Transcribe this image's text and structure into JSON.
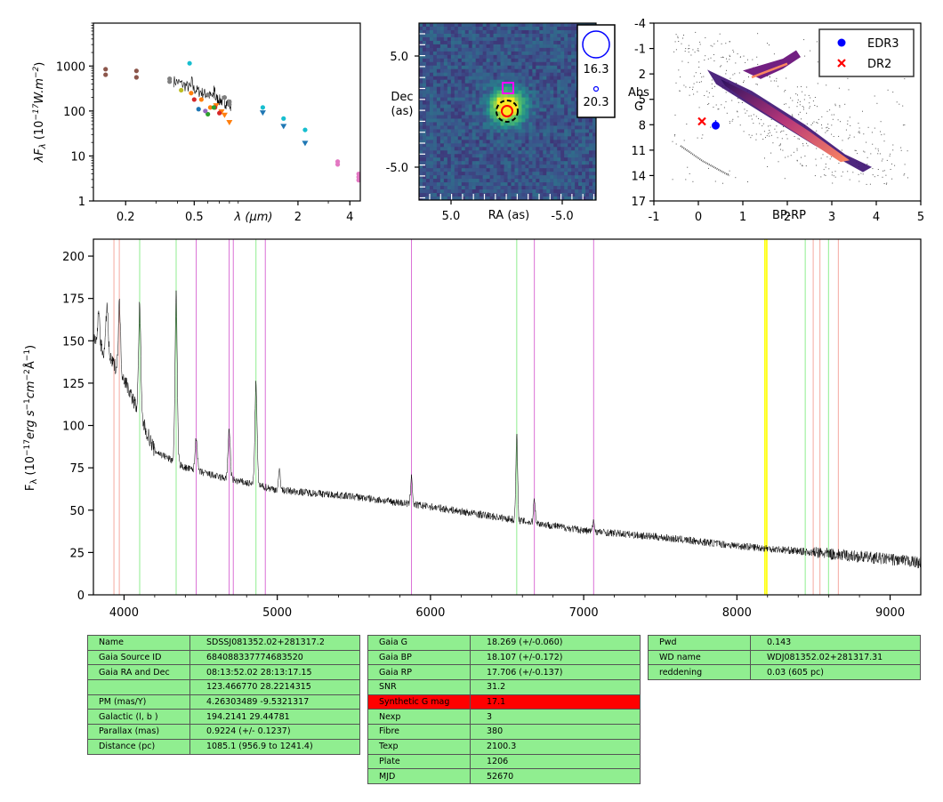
{
  "chart_data": [
    {
      "type": "scatter",
      "panel": "sed",
      "xlabel": "λ (μm)",
      "ylabel": "λF_λ (10^-17 W.m^-2)",
      "xscale": "log",
      "yscale": "log",
      "xlim": [
        0.13,
        4.6
      ],
      "ylim": [
        1,
        9000
      ],
      "xticks": [
        "0.2",
        "0.5",
        "2",
        "4"
      ],
      "yticks": [
        "1",
        "10",
        "100",
        "1000"
      ],
      "series": [
        {
          "color": "#8c564b",
          "x": [
            0.153,
            0.153,
            0.231,
            0.231
          ],
          "y": [
            850,
            640,
            780,
            560
          ]
        },
        {
          "color": "#17becf",
          "x": [
            0.47,
            1.25,
            1.65,
            2.2
          ],
          "y": [
            1150,
            120,
            68,
            38
          ]
        },
        {
          "color": "#ff7f0e",
          "x": [
            0.48,
            0.55,
            0.62,
            0.67,
            0.72,
            0.75,
            0.8
          ],
          "y": [
            250,
            180,
            120,
            130,
            95,
            80,
            55
          ]
        },
        {
          "color": "#1f77b4",
          "x": [
            1.25,
            1.65,
            2.2,
            0.53
          ],
          "y": [
            90,
            45,
            19,
            110
          ]
        },
        {
          "color": "#d62728",
          "x": [
            0.5,
            0.66,
            0.7
          ],
          "y": [
            180,
            120,
            90
          ]
        },
        {
          "color": "#2ca02c",
          "x": [
            0.6,
            0.65
          ],
          "y": [
            85,
            120
          ]
        },
        {
          "color": "#e377c2",
          "x": [
            3.4,
            3.4,
            4.5,
            4.5,
            4.5
          ],
          "y": [
            7.5,
            6.5,
            4.0,
            3.4,
            2.9
          ]
        },
        {
          "color": "#7f7f7f",
          "x": [
            0.36,
            0.36,
            0.6,
            0.75,
            0.8,
            0.8
          ],
          "y": [
            520,
            450,
            230,
            200,
            160,
            140
          ]
        },
        {
          "color": "#bcbd22",
          "x": [
            0.42
          ],
          "y": [
            290
          ]
        },
        {
          "color": "#9467bd",
          "x": [
            0.58
          ],
          "y": [
            100
          ]
        }
      ]
    },
    {
      "type": "heatmap",
      "panel": "image",
      "xlabel": "RA (as)",
      "ylabel": "Dec (as)",
      "xlim": [
        8.0,
        -8.0
      ],
      "ylim": [
        -8.0,
        8.0
      ],
      "xticks": [
        "5.0",
        "-5.0"
      ],
      "yticks": [
        "5.0",
        "-5.0"
      ],
      "legend": [
        {
          "label": "16.3",
          "marker": "large-circle",
          "color": "#0000ff"
        },
        {
          "label": "20.3",
          "marker": "small-circle",
          "color": "#0000ff"
        }
      ]
    },
    {
      "type": "scatter",
      "panel": "hr-diagram",
      "xlabel": "BP-RP",
      "ylabel": "Abs G",
      "xlim": [
        -1,
        5
      ],
      "ylim": [
        17,
        -4
      ],
      "xticks": [
        "-1",
        "0",
        "1",
        "2",
        "3",
        "4",
        "5"
      ],
      "yticks": [
        "-4",
        "-1",
        "2",
        "5",
        "8",
        "11",
        "14",
        "17"
      ],
      "legend_position": "top-right",
      "series": [
        {
          "name": "EDR3",
          "color": "#0000ff",
          "marker": "circle",
          "x": [
            0.39
          ],
          "y": [
            8.1
          ]
        },
        {
          "name": "DR2",
          "color": "#ff0000",
          "marker": "x",
          "x": [
            0.08
          ],
          "y": [
            7.6
          ]
        }
      ]
    },
    {
      "type": "line",
      "panel": "spectrum",
      "xlabel": "",
      "ylabel": "F_λ (10^-17 erg s^-1 cm^-2 Å^-1)",
      "xlim": [
        3800,
        9200
      ],
      "ylim": [
        0,
        210
      ],
      "xticks": [
        "4000",
        "5000",
        "6000",
        "7000",
        "8000",
        "9000"
      ],
      "yticks": [
        "0",
        "25",
        "50",
        "75",
        "100",
        "125",
        "150",
        "175",
        "200"
      ],
      "continuum": [
        [
          3800,
          150
        ],
        [
          3900,
          140
        ],
        [
          4000,
          128
        ],
        [
          4200,
          85
        ],
        [
          4400,
          75
        ],
        [
          4600,
          70
        ],
        [
          5000,
          62
        ],
        [
          5500,
          58
        ],
        [
          6000,
          52
        ],
        [
          6500,
          45
        ],
        [
          7000,
          38
        ],
        [
          7500,
          34
        ],
        [
          8000,
          29
        ],
        [
          8500,
          25
        ],
        [
          9000,
          21
        ],
        [
          9200,
          19
        ]
      ],
      "emission_lines": [
        {
          "x": 3835,
          "height": 20
        },
        {
          "x": 3889,
          "height": 30
        },
        {
          "x": 3970,
          "height": 40
        },
        {
          "x": 4102,
          "height": 65
        },
        {
          "x": 4340,
          "height": 100
        },
        {
          "x": 4471,
          "height": 20
        },
        {
          "x": 4686,
          "height": 30
        },
        {
          "x": 4861,
          "height": 60
        },
        {
          "x": 5015,
          "height": 12
        },
        {
          "x": 5876,
          "height": 17
        },
        {
          "x": 6563,
          "height": 50
        },
        {
          "x": 6678,
          "height": 15
        },
        {
          "x": 7065,
          "height": 6
        }
      ],
      "reference_lines": [
        {
          "x": 3934,
          "color": "#f5a9a0"
        },
        {
          "x": 3969,
          "color": "#f5a9a0"
        },
        {
          "x": 4102,
          "color": "#90ee90"
        },
        {
          "x": 4340,
          "color": "#90ee90"
        },
        {
          "x": 4471,
          "color": "#da70d6"
        },
        {
          "x": 4686,
          "color": "#da70d6"
        },
        {
          "x": 4713,
          "color": "#da70d6"
        },
        {
          "x": 4861,
          "color": "#90ee90"
        },
        {
          "x": 4922,
          "color": "#da70d6"
        },
        {
          "x": 5876,
          "color": "#da70d6"
        },
        {
          "x": 6563,
          "color": "#90ee90"
        },
        {
          "x": 6678,
          "color": "#da70d6"
        },
        {
          "x": 7065,
          "color": "#da70d6"
        },
        {
          "x": 8183,
          "color": "#ffff00"
        },
        {
          "x": 8195,
          "color": "#ffff00"
        },
        {
          "x": 8446,
          "color": "#90ee90"
        },
        {
          "x": 8498,
          "color": "#f5a9a0"
        },
        {
          "x": 8542,
          "color": "#f5a9a0"
        },
        {
          "x": 8598,
          "color": "#90ee90"
        },
        {
          "x": 8662,
          "color": "#f5a9a0"
        }
      ]
    }
  ],
  "tables": {
    "left": [
      {
        "key": "Name",
        "value": "SDSSJ081352.02+281317.2"
      },
      {
        "key": "Gaia Source ID",
        "value": "684088337774683520"
      },
      {
        "key": "Gaia RA and Dec",
        "value": "08:13:52.02    28:13:17.15"
      },
      {
        "key": "",
        "value": "123.466770    28.2214315"
      },
      {
        "key": "PM (mas/Y)",
        "value": "4.26303489    -9.5321317"
      },
      {
        "key": "Galactic (l, b )",
        "value": "194.2141    29.44781"
      },
      {
        "key": "Parallax (mas)",
        "value": "0.9224 (+/- 0.1237)"
      },
      {
        "key": "Distance (pc)",
        "value": "1085.1 (956.9 to 1241.4)"
      }
    ],
    "middle": [
      {
        "key": "Gaia G",
        "value": "18.269 (+/-0.060)"
      },
      {
        "key": "Gaia BP",
        "value": "18.107 (+/-0.172)"
      },
      {
        "key": "Gaia RP",
        "value": "17.706 (+/-0.137)"
      },
      {
        "key": "SNR",
        "value": "31.2"
      },
      {
        "key": "Synthetic G mag",
        "value": "17.1",
        "highlight": "#ff0000"
      },
      {
        "key": "Nexp",
        "value": "3"
      },
      {
        "key": "Fibre",
        "value": "380"
      },
      {
        "key": "Texp",
        "value": "2100.3"
      },
      {
        "key": "Plate",
        "value": "1206"
      },
      {
        "key": "MJD",
        "value": "52670"
      }
    ],
    "right": [
      {
        "key": "Pwd",
        "value": "0.143"
      },
      {
        "key": "WD name",
        "value": "WDJ081352.02+281317.31"
      },
      {
        "key": "reddening",
        "value": "0.03 (605 pc)"
      }
    ]
  }
}
